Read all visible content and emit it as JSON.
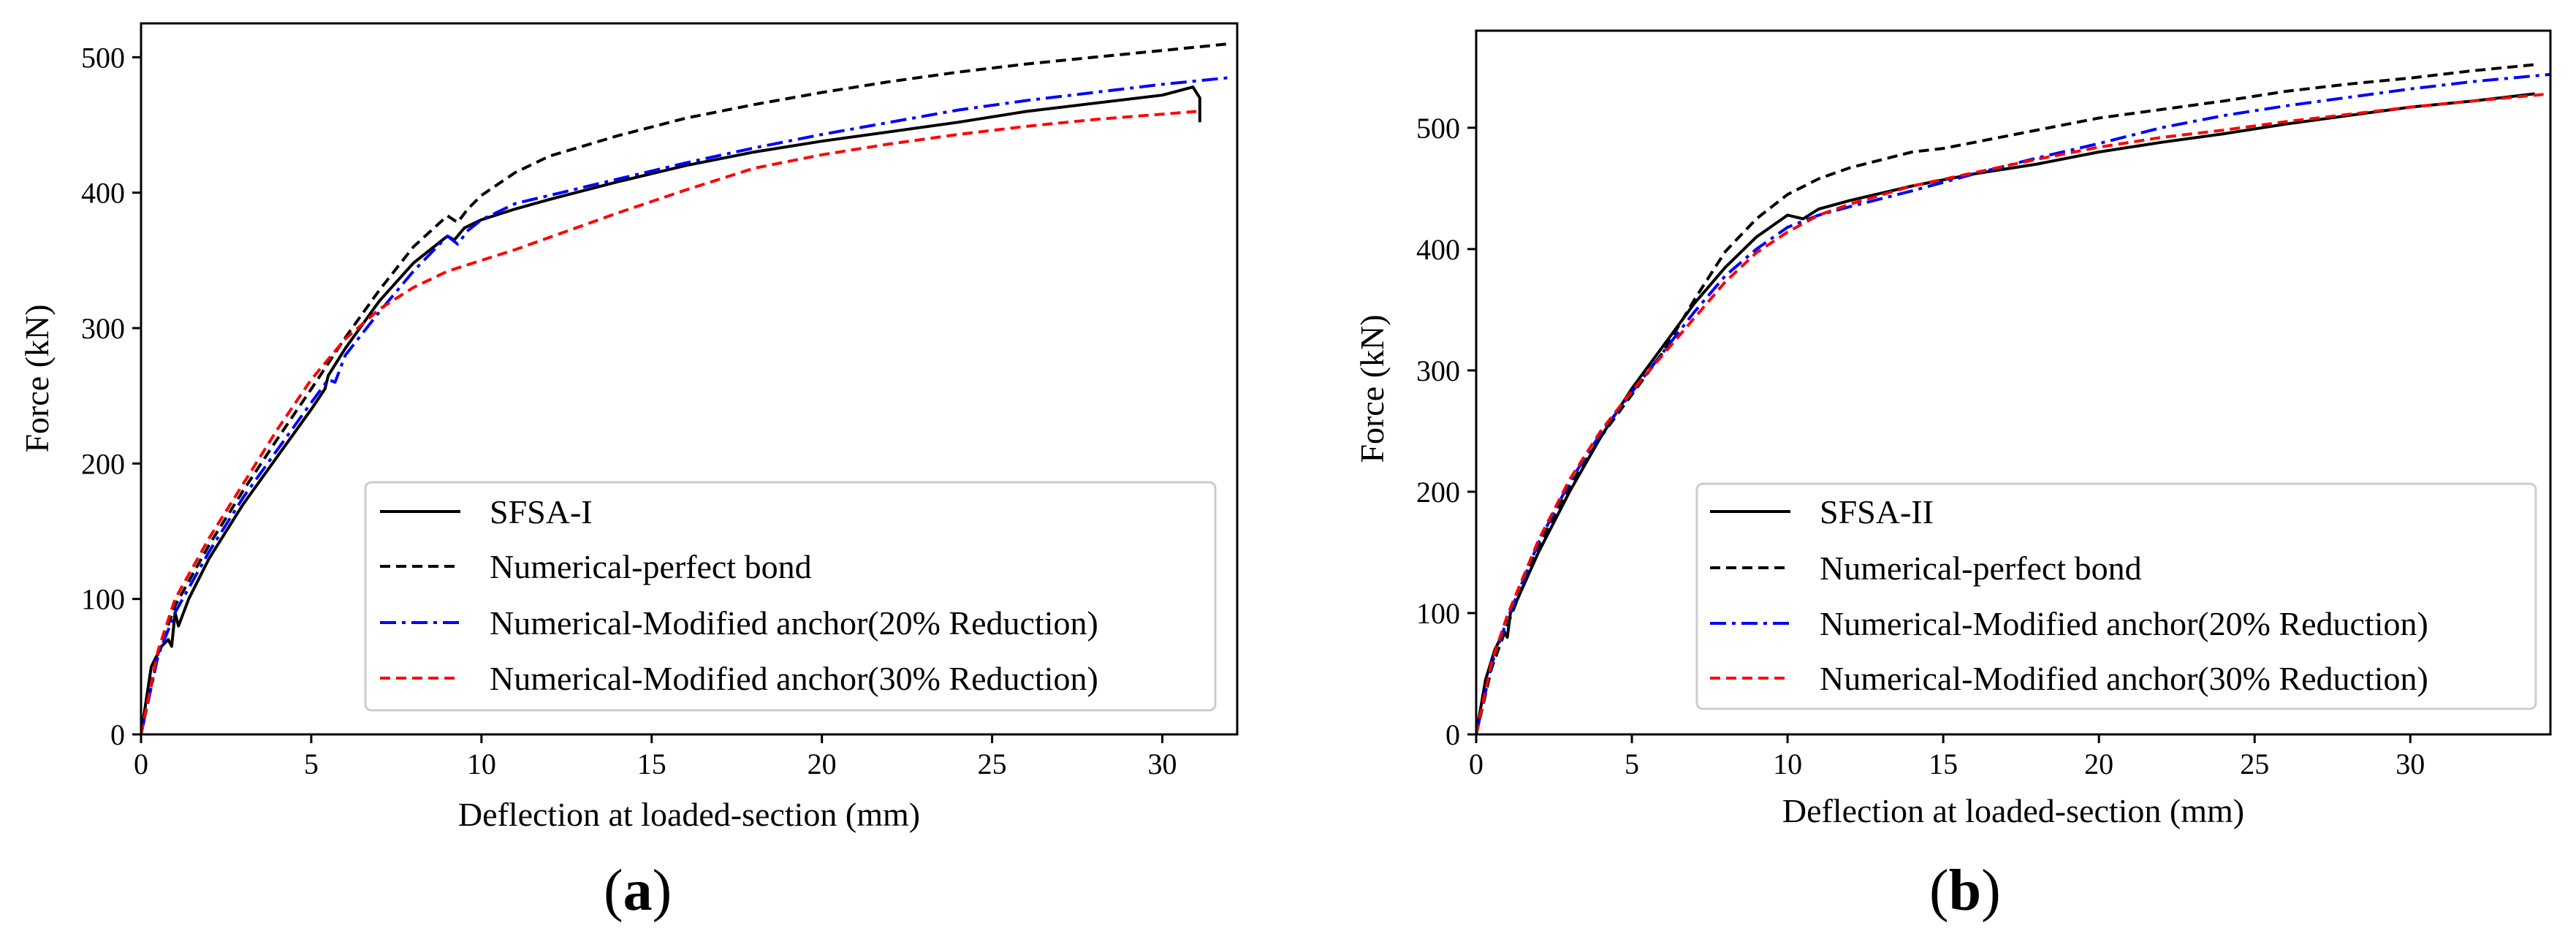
{
  "colors": {
    "experimental": "#000000",
    "perfect_bond": "#000000",
    "reduction_20": "#0000ff",
    "reduction_30": "#ff0000"
  },
  "chart_data": [
    {
      "type": "line",
      "panel_label": "a",
      "xlabel": "Deflection at loaded-section (mm)",
      "ylabel": "Force (kN)",
      "xlim": [
        0,
        32.2
      ],
      "ylim": [
        0,
        525
      ],
      "xticks": [
        0,
        5,
        10,
        15,
        20,
        25,
        30
      ],
      "yticks": [
        0,
        100,
        200,
        300,
        400,
        500
      ],
      "grid": false,
      "legend_position": "lower-right",
      "series": [
        {
          "name": "SFSA-I",
          "style": "solid",
          "color": "#000000",
          "x": [
            0,
            0.3,
            0.6,
            0.8,
            0.9,
            1.0,
            1.1,
            1.4,
            2.0,
            3.0,
            4.0,
            5.0,
            5.4,
            5.5,
            6.0,
            7.0,
            8.0,
            9.0,
            9.2,
            9.5,
            10.0,
            11.0,
            12.0,
            14.0,
            16.0,
            18.0,
            20.0,
            22.0,
            24.0,
            26.0,
            28.0,
            30.0,
            30.9,
            31.1,
            31.1
          ],
          "y": [
            0,
            50,
            65,
            70,
            65,
            90,
            80,
            100,
            130,
            170,
            205,
            240,
            255,
            265,
            285,
            320,
            348,
            368,
            365,
            374,
            380,
            388,
            395,
            408,
            420,
            430,
            438,
            445,
            452,
            460,
            466,
            472,
            478,
            470,
            452
          ]
        },
        {
          "name": "Numerical-perfect bond",
          "style": "dashed",
          "color": "#000000",
          "x": [
            0,
            0.5,
            1,
            2,
            3,
            4,
            5,
            6,
            7,
            8,
            9,
            9.3,
            9.6,
            10,
            11,
            12,
            14,
            16,
            18,
            20,
            22,
            24,
            26,
            28,
            30,
            32
          ],
          "y": [
            0,
            60,
            95,
            140,
            180,
            218,
            255,
            293,
            328,
            360,
            383,
            378,
            388,
            398,
            415,
            427,
            442,
            455,
            465,
            474,
            482,
            489,
            495,
            500,
            505,
            510
          ]
        },
        {
          "name": "Numerical-Modified anchor(20% Reduction)",
          "style": "dashdot",
          "color": "#0000ff",
          "x": [
            0,
            0.5,
            1,
            2,
            3,
            4,
            5,
            5.5,
            5.7,
            6,
            7,
            8,
            9,
            9.3,
            9.6,
            10,
            11,
            12,
            14,
            16,
            18,
            20,
            22,
            24,
            26,
            28,
            30,
            32
          ],
          "y": [
            0,
            58,
            90,
            135,
            175,
            210,
            245,
            262,
            260,
            280,
            312,
            342,
            368,
            362,
            372,
            380,
            392,
            398,
            410,
            422,
            433,
            443,
            452,
            461,
            468,
            474,
            480,
            485
          ]
        },
        {
          "name": "Numerical-Modified anchor(30% Reduction)",
          "style": "dashed",
          "color": "#ff0000",
          "x": [
            0,
            0.5,
            1,
            2,
            3,
            4,
            5,
            6,
            7,
            8,
            9,
            10,
            11,
            12,
            14,
            16,
            18,
            20,
            22,
            24,
            26,
            28,
            30,
            31
          ],
          "y": [
            0,
            62,
            100,
            145,
            185,
            225,
            262,
            292,
            314,
            330,
            342,
            350,
            358,
            367,
            385,
            402,
            418,
            428,
            436,
            443,
            449,
            454,
            458,
            460
          ]
        }
      ]
    },
    {
      "type": "line",
      "panel_label": "b",
      "xlabel": "Deflection at loaded-section (mm)",
      "ylabel": "Force (kN)",
      "xlim": [
        0,
        34.5
      ],
      "ylim": [
        0,
        580
      ],
      "xticks": [
        0,
        5,
        10,
        15,
        20,
        25,
        30
      ],
      "yticks": [
        0,
        100,
        200,
        300,
        400,
        500
      ],
      "grid": false,
      "legend_position": "lower-right",
      "series": [
        {
          "name": "SFSA-II",
          "style": "solid",
          "color": "#000000",
          "x": [
            0,
            0.3,
            0.6,
            0.9,
            1.0,
            1.1,
            1.3,
            2,
            3,
            4,
            5,
            6,
            7,
            8,
            9,
            10,
            10.5,
            11,
            12,
            14,
            16,
            18,
            20,
            22,
            24,
            26,
            28,
            30,
            32,
            34
          ],
          "y": [
            0,
            45,
            70,
            85,
            80,
            100,
            110,
            150,
            200,
            245,
            285,
            320,
            355,
            385,
            410,
            428,
            425,
            433,
            440,
            452,
            462,
            470,
            480,
            488,
            495,
            503,
            510,
            517,
            522,
            528
          ]
        },
        {
          "name": "Numerical-perfect bond",
          "style": "dashed",
          "color": "#000000",
          "x": [
            0,
            0.5,
            1,
            2,
            3,
            4,
            5,
            6,
            7,
            8,
            9,
            10,
            11,
            12,
            14,
            15,
            16,
            18,
            20,
            22,
            24,
            26,
            28,
            30,
            32,
            34
          ],
          "y": [
            0,
            55,
            90,
            155,
            205,
            245,
            280,
            315,
            358,
            398,
            425,
            445,
            458,
            467,
            480,
            483,
            488,
            498,
            508,
            515,
            522,
            530,
            536,
            541,
            547,
            552
          ]
        },
        {
          "name": "Numerical-Modified anchor(20% Reduction)",
          "style": "dashdot",
          "color": "#0000ff",
          "x": [
            0,
            0.5,
            1,
            2,
            3,
            4,
            5,
            6,
            7,
            8,
            9,
            10,
            11,
            12,
            14,
            16,
            18,
            20,
            22,
            24,
            26,
            28,
            30,
            32,
            34.5
          ],
          "y": [
            0,
            58,
            95,
            158,
            208,
            248,
            282,
            315,
            348,
            378,
            400,
            418,
            428,
            435,
            448,
            462,
            475,
            487,
            500,
            510,
            518,
            525,
            532,
            538,
            544
          ]
        },
        {
          "name": "Numerical-Modified anchor(30% Reduction)",
          "style": "dashed",
          "color": "#ff0000",
          "x": [
            0,
            0.5,
            1,
            2,
            3,
            4,
            5,
            6,
            7,
            8,
            9,
            10,
            11,
            12,
            14,
            16,
            18,
            20,
            22,
            24,
            26,
            28,
            30,
            32,
            34.5
          ],
          "y": [
            0,
            60,
            98,
            160,
            210,
            250,
            283,
            313,
            343,
            373,
            397,
            414,
            428,
            437,
            452,
            463,
            474,
            484,
            492,
            498,
            505,
            511,
            517,
            522,
            528
          ]
        }
      ]
    }
  ]
}
